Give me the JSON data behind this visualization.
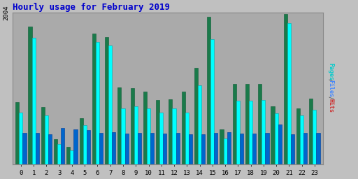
{
  "title": "Hourly usage for February 2019",
  "ytick_label": "2004",
  "ymax": 2004,
  "hours": [
    0,
    1,
    2,
    3,
    4,
    5,
    6,
    7,
    8,
    9,
    10,
    11,
    12,
    13,
    14,
    15,
    16,
    17,
    18,
    19,
    20,
    21,
    22,
    23
  ],
  "pages": [
    820,
    1820,
    760,
    330,
    230,
    610,
    1730,
    1680,
    1020,
    1010,
    960,
    850,
    860,
    960,
    1280,
    1950,
    460,
    1060,
    1060,
    1060,
    770,
    1990,
    740,
    870
  ],
  "files": [
    690,
    1670,
    650,
    270,
    190,
    520,
    1620,
    1570,
    740,
    770,
    740,
    690,
    740,
    690,
    1050,
    1660,
    340,
    840,
    840,
    850,
    680,
    1870,
    650,
    720
  ],
  "hits": [
    420,
    420,
    400,
    480,
    460,
    450,
    420,
    430,
    410,
    420,
    420,
    410,
    420,
    400,
    400,
    420,
    430,
    410,
    410,
    420,
    530,
    400,
    420,
    420
  ],
  "color_pages": "#1a7a4a",
  "color_files": "#00ffff",
  "color_hits": "#0066cc",
  "bg_color": "#c0c0c0",
  "plot_bg": "#aaaaaa",
  "title_color": "#0000cc",
  "grid_color": "#999999",
  "bar_width": 0.28,
  "font_family": "monospace"
}
